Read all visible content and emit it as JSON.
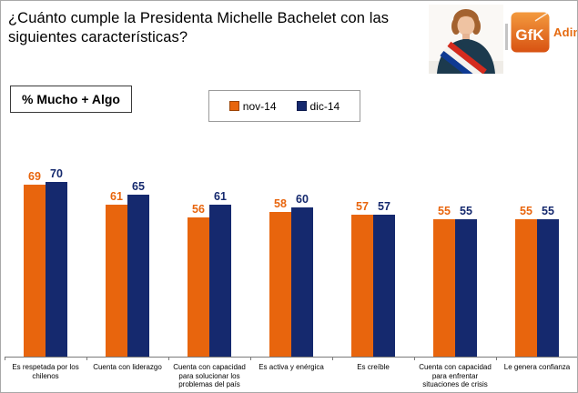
{
  "header": {
    "title": "¿Cuánto cumple la Presidenta Michelle Bachelet con las siguientes características?",
    "brand": {
      "logo_text": "GfK",
      "brand_name": "Adimark"
    }
  },
  "measure_box": {
    "label": "% Mucho + Algo"
  },
  "colors": {
    "series_nov": "#e8650d",
    "series_dic": "#15296e",
    "axis": "#7a7a7a",
    "brand_orange": "#e56a10"
  },
  "chart_data": {
    "type": "bar",
    "title": "¿Cuánto cumple la Presidenta Michelle Bachelet con las siguientes características?",
    "subtitle": "% Mucho + Algo",
    "categories": [
      "Es respetada por los chilenos",
      "Cuenta con liderazgo",
      "Cuenta con capacidad para solucionar los problemas del país",
      "Es activa y enérgica",
      "Es creíble",
      "Cuenta con capacidad para enfrentar situaciones de crisis",
      "Le genera confianza"
    ],
    "series": [
      {
        "name": "nov-14",
        "color": "#e8650d",
        "values": [
          69,
          61,
          56,
          58,
          57,
          55,
          55
        ]
      },
      {
        "name": "dic-14",
        "color": "#15296e",
        "values": [
          70,
          65,
          61,
          60,
          57,
          55,
          55
        ]
      }
    ],
    "ylim": [
      0,
      100
    ],
    "grid": false,
    "legend_position": "top",
    "value_labels": true
  }
}
